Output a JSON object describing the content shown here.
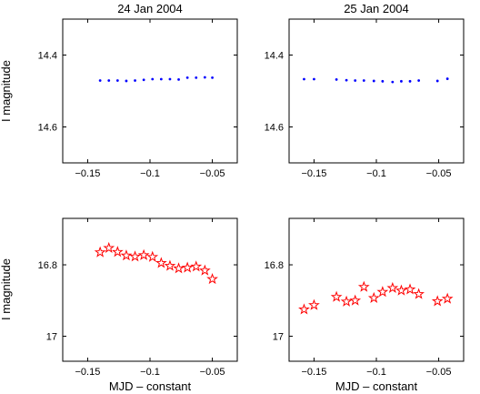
{
  "chart_data": [
    {
      "type": "scatter",
      "title": "24 Jan 2004",
      "xlabel": "",
      "ylabel": "I magnitude",
      "xlim": [
        -0.17,
        -0.03
      ],
      "ylim": [
        14.3,
        14.7
      ],
      "y_reversed": true,
      "xticks": [
        -0.15,
        -0.1,
        -0.05
      ],
      "xtick_labels": [
        "−0.15",
        "−0.1",
        "−0.05"
      ],
      "yticks": [
        14.4,
        14.6
      ],
      "ytick_labels": [
        "14.4",
        "14.6"
      ],
      "marker": "dot",
      "color": "#0000ff",
      "x": [
        -0.14,
        -0.133,
        -0.126,
        -0.119,
        -0.112,
        -0.105,
        -0.098,
        -0.091,
        -0.084,
        -0.077,
        -0.07,
        -0.063,
        -0.056,
        -0.05
      ],
      "y": [
        14.471,
        14.471,
        14.471,
        14.472,
        14.471,
        14.469,
        14.467,
        14.467,
        14.467,
        14.468,
        14.463,
        14.463,
        14.462,
        14.463
      ]
    },
    {
      "type": "scatter",
      "title": "25 Jan 2004",
      "xlabel": "",
      "ylabel": "",
      "xlim": [
        -0.17,
        -0.03
      ],
      "ylim": [
        14.3,
        14.7
      ],
      "y_reversed": true,
      "xticks": [
        -0.15,
        -0.1,
        -0.05
      ],
      "xtick_labels": [
        "−0.15",
        "−0.1",
        "−0.05"
      ],
      "yticks": [
        14.4,
        14.6
      ],
      "ytick_labels": [
        "14.4",
        "14.6"
      ],
      "marker": "dot",
      "color": "#0000ff",
      "x": [
        -0.158,
        -0.15,
        -0.132,
        -0.124,
        -0.117,
        -0.11,
        -0.102,
        -0.095,
        -0.087,
        -0.08,
        -0.073,
        -0.066,
        -0.051,
        -0.043
      ],
      "y": [
        14.467,
        14.467,
        14.468,
        14.47,
        14.471,
        14.471,
        14.472,
        14.473,
        14.475,
        14.473,
        14.473,
        14.471,
        14.472,
        14.466
      ]
    },
    {
      "type": "scatter",
      "title": "",
      "xlabel": "MJD – constant",
      "ylabel": "I magnitude",
      "xlim": [
        -0.17,
        -0.03
      ],
      "ylim": [
        16.67,
        17.07
      ],
      "y_reversed": true,
      "xticks": [
        -0.15,
        -0.1,
        -0.05
      ],
      "xtick_labels": [
        "−0.15",
        "−0.1",
        "−0.05"
      ],
      "yticks": [
        16.8,
        17.0
      ],
      "ytick_labels": [
        "16.8",
        "17"
      ],
      "marker": "star",
      "color": "#ff0000",
      "x": [
        -0.14,
        -0.133,
        -0.126,
        -0.119,
        -0.112,
        -0.105,
        -0.098,
        -0.091,
        -0.084,
        -0.077,
        -0.07,
        -0.063,
        -0.056,
        -0.05
      ],
      "y": [
        16.765,
        16.753,
        16.764,
        16.774,
        16.777,
        16.773,
        16.778,
        16.795,
        16.803,
        16.81,
        16.808,
        16.805,
        16.816,
        16.84
      ]
    },
    {
      "type": "scatter",
      "title": "",
      "xlabel": "MJD – constant",
      "ylabel": "",
      "xlim": [
        -0.17,
        -0.03
      ],
      "ylim": [
        16.67,
        17.07
      ],
      "y_reversed": true,
      "xticks": [
        -0.15,
        -0.1,
        -0.05
      ],
      "xtick_labels": [
        "−0.15",
        "−0.1",
        "−0.05"
      ],
      "yticks": [
        16.8,
        17.0
      ],
      "ytick_labels": [
        "16.8",
        "17"
      ],
      "marker": "star",
      "color": "#ff0000",
      "x": [
        -0.158,
        -0.15,
        -0.132,
        -0.124,
        -0.117,
        -0.11,
        -0.102,
        -0.095,
        -0.087,
        -0.08,
        -0.073,
        -0.066,
        -0.051,
        -0.043
      ],
      "y": [
        16.925,
        16.913,
        16.89,
        16.903,
        16.9,
        16.862,
        16.893,
        16.876,
        16.865,
        16.872,
        16.869,
        16.882,
        16.902,
        16.895
      ]
    }
  ]
}
